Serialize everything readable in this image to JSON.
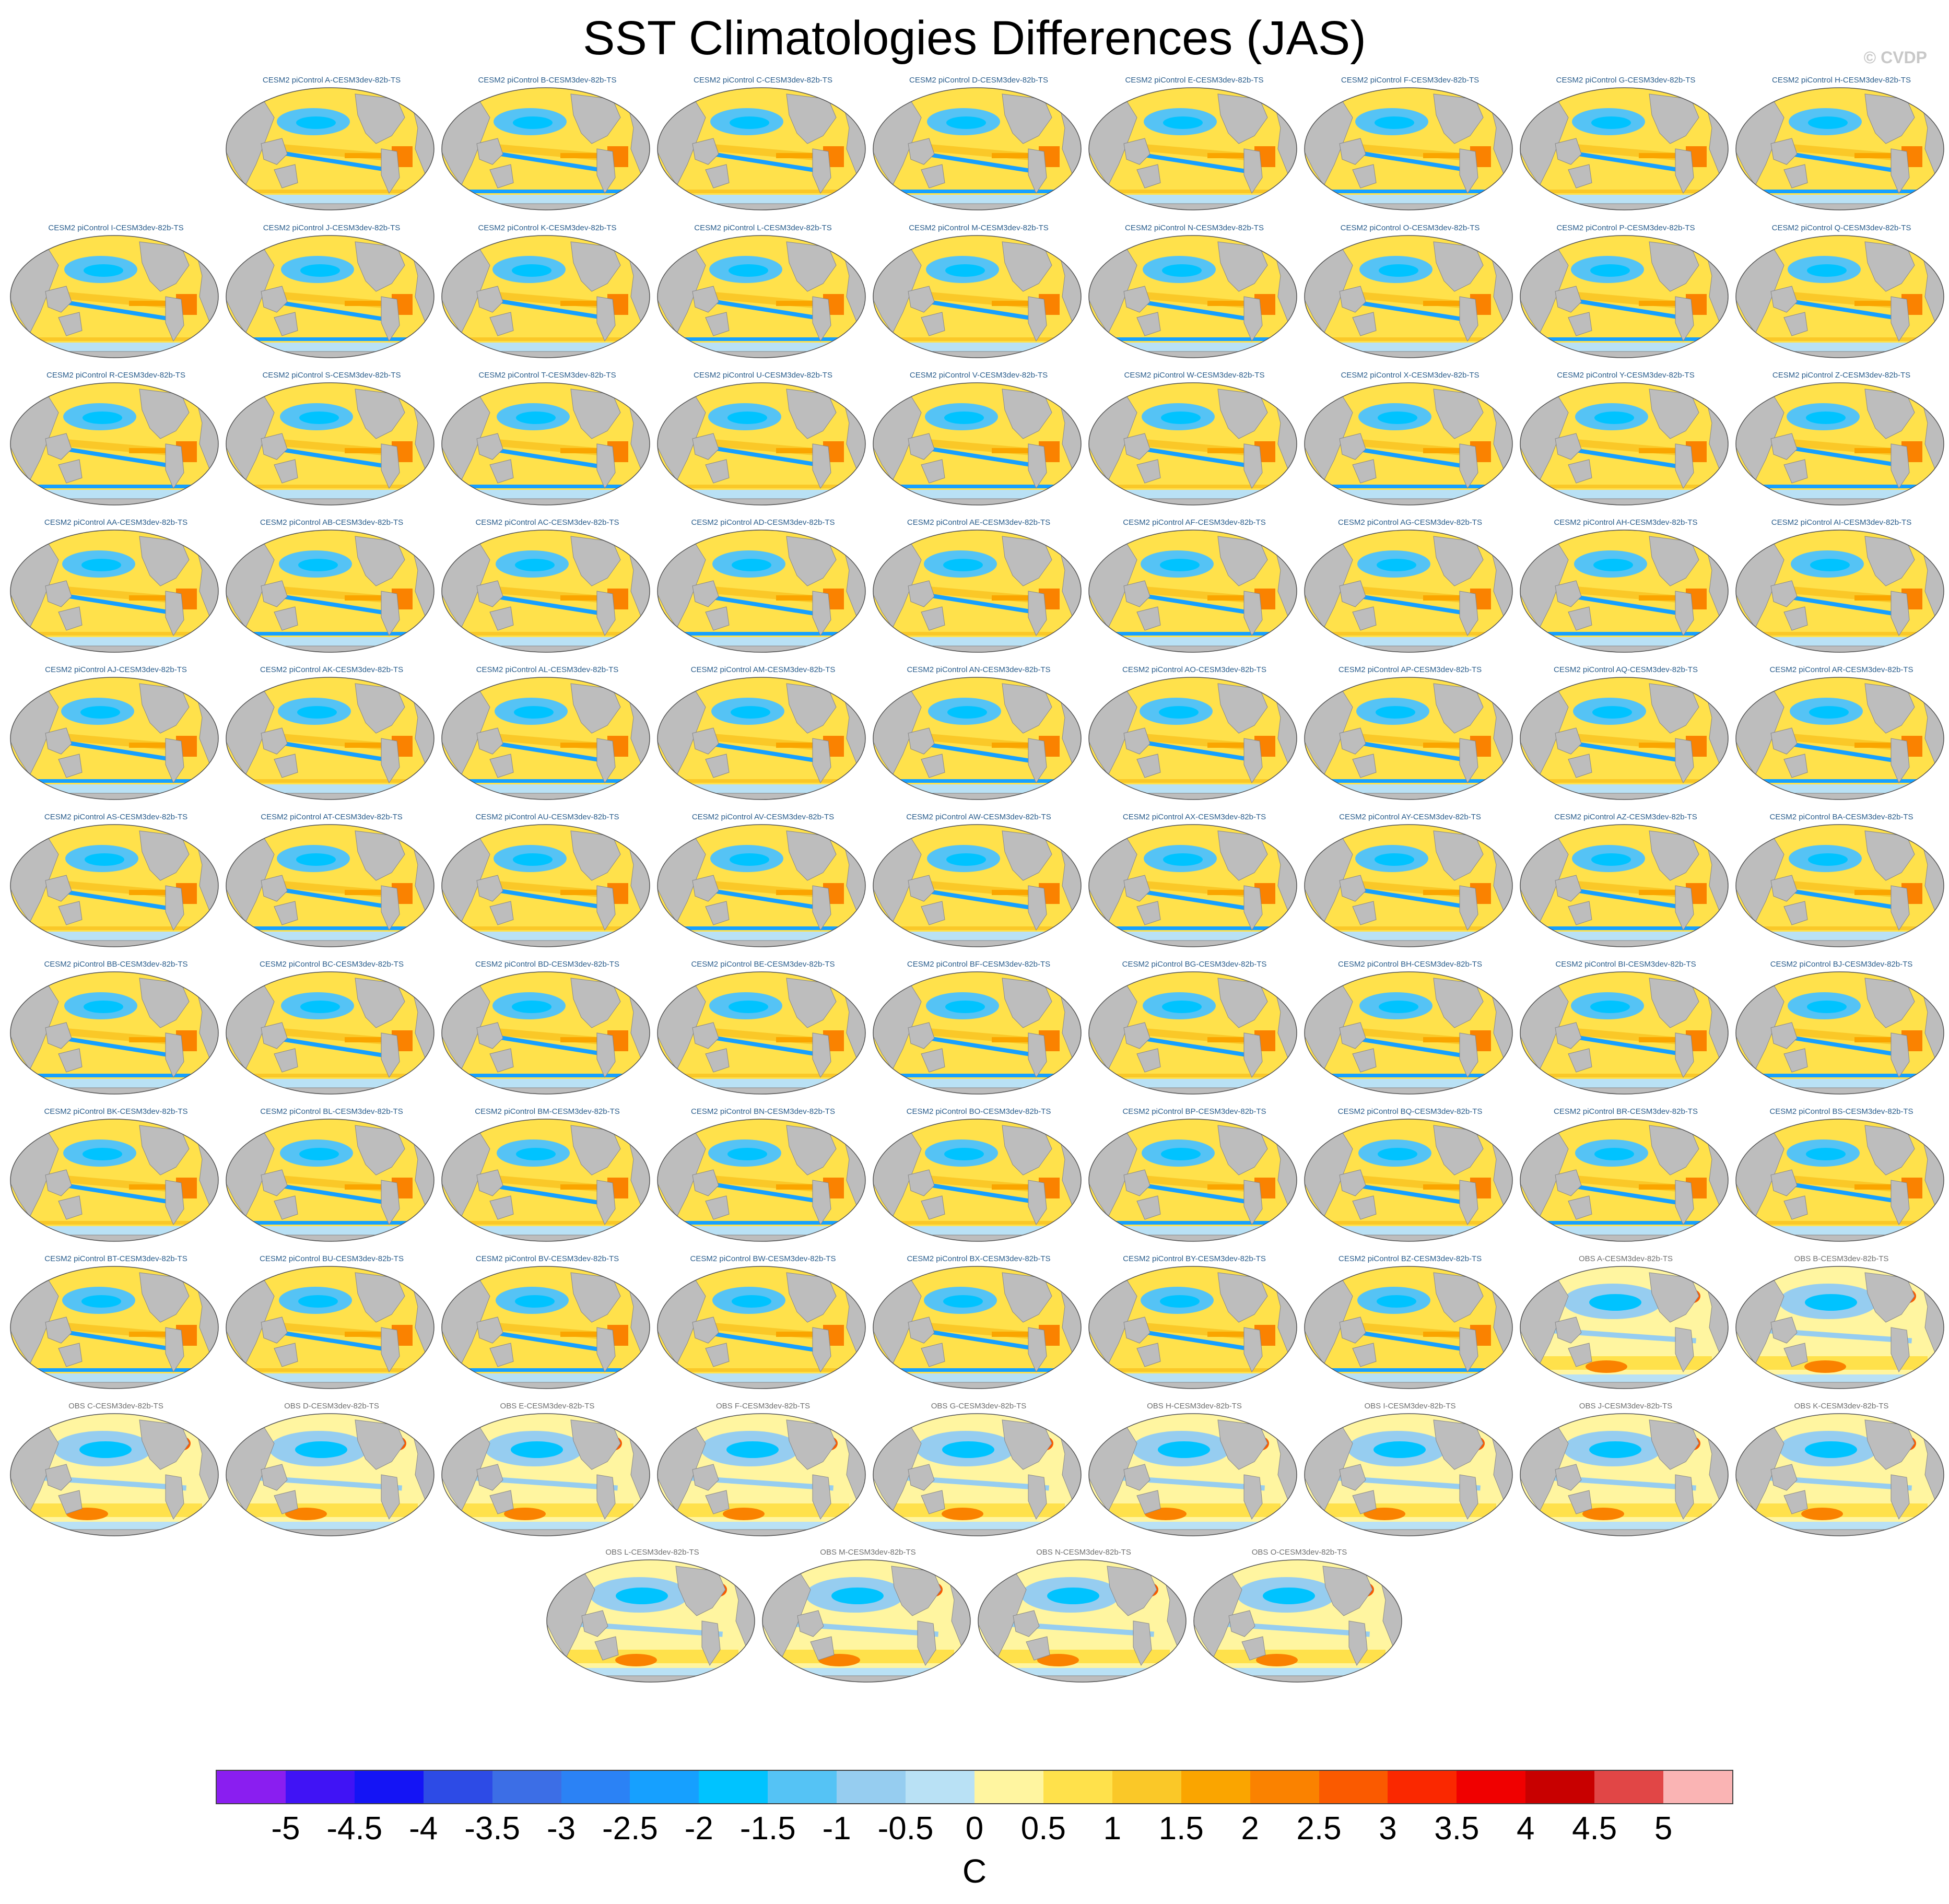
{
  "figure": {
    "title": "SST Climatologies Differences (JAS)",
    "credit": "© CVDP"
  },
  "panels": {
    "model_prefix": "CESM2 piControl",
    "reference_suffix": "CESM3dev-82b-TS",
    "model_panel_titles": [
      "CESM2 piControl A-CESM3dev-82b-TS",
      "CESM2 piControl B-CESM3dev-82b-TS",
      "CESM2 piControl C-CESM3dev-82b-TS",
      "CESM2 piControl D-CESM3dev-82b-TS",
      "CESM2 piControl E-CESM3dev-82b-TS",
      "CESM2 piControl F-CESM3dev-82b-TS",
      "CESM2 piControl G-CESM3dev-82b-TS",
      "CESM2 piControl H-CESM3dev-82b-TS",
      "CESM2 piControl I-CESM3dev-82b-TS",
      "CESM2 piControl J-CESM3dev-82b-TS",
      "CESM2 piControl K-CESM3dev-82b-TS",
      "CESM2 piControl L-CESM3dev-82b-TS",
      "CESM2 piControl M-CESM3dev-82b-TS",
      "CESM2 piControl N-CESM3dev-82b-TS",
      "CESM2 piControl O-CESM3dev-82b-TS",
      "CESM2 piControl P-CESM3dev-82b-TS",
      "CESM2 piControl Q-CESM3dev-82b-TS",
      "CESM2 piControl R-CESM3dev-82b-TS",
      "CESM2 piControl S-CESM3dev-82b-TS",
      "CESM2 piControl T-CESM3dev-82b-TS",
      "CESM2 piControl U-CESM3dev-82b-TS",
      "CESM2 piControl V-CESM3dev-82b-TS",
      "CESM2 piControl W-CESM3dev-82b-TS",
      "CESM2 piControl X-CESM3dev-82b-TS",
      "CESM2 piControl Y-CESM3dev-82b-TS",
      "CESM2 piControl Z-CESM3dev-82b-TS",
      "CESM2 piControl AA-CESM3dev-82b-TS",
      "CESM2 piControl AB-CESM3dev-82b-TS",
      "CESM2 piControl AC-CESM3dev-82b-TS",
      "CESM2 piControl AD-CESM3dev-82b-TS",
      "CESM2 piControl AE-CESM3dev-82b-TS",
      "CESM2 piControl AF-CESM3dev-82b-TS",
      "CESM2 piControl AG-CESM3dev-82b-TS",
      "CESM2 piControl AH-CESM3dev-82b-TS",
      "CESM2 piControl AI-CESM3dev-82b-TS",
      "CESM2 piControl AJ-CESM3dev-82b-TS",
      "CESM2 piControl AK-CESM3dev-82b-TS",
      "CESM2 piControl AL-CESM3dev-82b-TS",
      "CESM2 piControl AM-CESM3dev-82b-TS",
      "CESM2 piControl AN-CESM3dev-82b-TS",
      "CESM2 piControl AO-CESM3dev-82b-TS",
      "CESM2 piControl AP-CESM3dev-82b-TS",
      "CESM2 piControl AQ-CESM3dev-82b-TS",
      "CESM2 piControl AR-CESM3dev-82b-TS",
      "CESM2 piControl AS-CESM3dev-82b-TS",
      "CESM2 piControl AT-CESM3dev-82b-TS",
      "CESM2 piControl AU-CESM3dev-82b-TS",
      "CESM2 piControl AV-CESM3dev-82b-TS",
      "CESM2 piControl AW-CESM3dev-82b-TS",
      "CESM2 piControl AX-CESM3dev-82b-TS",
      "CESM2 piControl AY-CESM3dev-82b-TS",
      "CESM2 piControl AZ-CESM3dev-82b-TS",
      "CESM2 piControl BA-CESM3dev-82b-TS",
      "CESM2 piControl BB-CESM3dev-82b-TS",
      "CESM2 piControl BC-CESM3dev-82b-TS",
      "CESM2 piControl BD-CESM3dev-82b-TS",
      "CESM2 piControl BE-CESM3dev-82b-TS",
      "CESM2 piControl BF-CESM3dev-82b-TS",
      "CESM2 piControl BG-CESM3dev-82b-TS",
      "CESM2 piControl BH-CESM3dev-82b-TS",
      "CESM2 piControl BI-CESM3dev-82b-TS",
      "CESM2 piControl BJ-CESM3dev-82b-TS",
      "CESM2 piControl BK-CESM3dev-82b-TS",
      "CESM2 piControl BL-CESM3dev-82b-TS",
      "CESM2 piControl BM-CESM3dev-82b-TS",
      "CESM2 piControl BN-CESM3dev-82b-TS",
      "CESM2 piControl BO-CESM3dev-82b-TS",
      "CESM2 piControl BP-CESM3dev-82b-TS",
      "CESM2 piControl BQ-CESM3dev-82b-TS",
      "CESM2 piControl BR-CESM3dev-82b-TS",
      "CESM2 piControl BS-CESM3dev-82b-TS",
      "CESM2 piControl BT-CESM3dev-82b-TS",
      "CESM2 piControl BU-CESM3dev-82b-TS",
      "CESM2 piControl BV-CESM3dev-82b-TS",
      "CESM2 piControl BW-CESM3dev-82b-TS",
      "CESM2 piControl BX-CESM3dev-82b-TS",
      "CESM2 piControl BY-CESM3dev-82b-TS",
      "CESM2 piControl BZ-CESM3dev-82b-TS"
    ],
    "obs_panel_titles": [
      "OBS A-CESM3dev-82b-TS",
      "OBS B-CESM3dev-82b-TS",
      "OBS C-CESM3dev-82b-TS",
      "OBS D-CESM3dev-82b-TS",
      "OBS E-CESM3dev-82b-TS",
      "OBS F-CESM3dev-82b-TS",
      "OBS G-CESM3dev-82b-TS",
      "OBS H-CESM3dev-82b-TS",
      "OBS I-CESM3dev-82b-TS",
      "OBS J-CESM3dev-82b-TS",
      "OBS K-CESM3dev-82b-TS",
      "OBS L-CESM3dev-82b-TS",
      "OBS M-CESM3dev-82b-TS",
      "OBS N-CESM3dev-82b-TS",
      "OBS O-CESM3dev-82b-TS"
    ]
  },
  "colorbar": {
    "units": "C",
    "levels": [
      "-5",
      "-4.5",
      "-4",
      "-3.5",
      "-3",
      "-2.5",
      "-2",
      "-1.5",
      "-1",
      "-0.5",
      "0",
      "0.5",
      "1",
      "1.5",
      "2",
      "2.5",
      "3",
      "3.5",
      "4",
      "4.5",
      "5"
    ],
    "colors": [
      "#8a1ef0",
      "#4013f5",
      "#1414f5",
      "#2d4be6",
      "#3c6ee6",
      "#2b82f5",
      "#16a0ff",
      "#00c3ff",
      "#55c3f5",
      "#96cdf0",
      "#b9e1f5",
      "#fff5a0",
      "#ffe14b",
      "#fac828",
      "#faa500",
      "#fa8200",
      "#fa5a00",
      "#fa2800",
      "#f00000",
      "#c80000",
      "#e14646",
      "#fab4b4"
    ],
    "land_color": "#bdbdbd"
  }
}
